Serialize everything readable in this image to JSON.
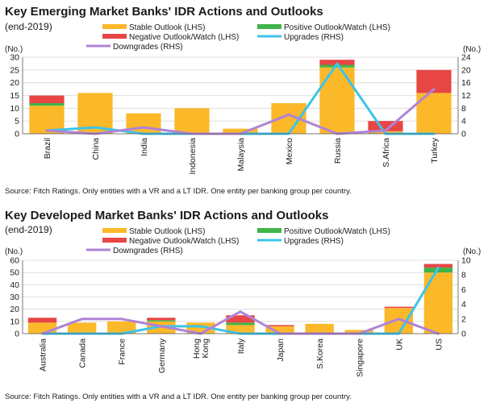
{
  "colors": {
    "stable": "#fbb829",
    "positive": "#3fb44a",
    "negative": "#e84545",
    "upgrades": "#3cc4ea",
    "downgrades": "#b083d6",
    "grid": "#d9d9d9",
    "axis": "#555555"
  },
  "chart_data": [
    {
      "type": "bar",
      "title": "Key Emerging Market Banks' IDR Actions and Outlooks",
      "subtitle": "(end-2019)",
      "ylabel_left": "(No.)",
      "ylabel_right": "(No.)",
      "ylim_left": [
        0,
        30
      ],
      "yticks_left": [
        0,
        5,
        10,
        15,
        20,
        25,
        30
      ],
      "ylim_right": [
        0,
        24
      ],
      "yticks_right": [
        0,
        4,
        8,
        12,
        16,
        20,
        24
      ],
      "grid": true,
      "legend_position": "top",
      "legend": [
        "Stable Outlook (LHS)",
        "Positive Outlook/Watch (LHS)",
        "Negative Outlook/Watch (LHS)",
        "Upgrades (RHS)",
        "Downgrades (RHS)"
      ],
      "categories": [
        "Brazil",
        "China",
        "India",
        "Indonesia",
        "Malaysia",
        "Mexico",
        "Russia",
        "S.Africa",
        "Turkey"
      ],
      "series": [
        {
          "name": "Stable Outlook (LHS)",
          "kind": "bar",
          "axis": "left",
          "values": [
            11,
            16,
            8,
            10,
            2,
            12,
            26,
            1,
            16
          ]
        },
        {
          "name": "Positive Outlook/Watch (LHS)",
          "kind": "bar",
          "axis": "left",
          "values": [
            1,
            0,
            0,
            0,
            0,
            0,
            1,
            0,
            0
          ]
        },
        {
          "name": "Negative Outlook/Watch (LHS)",
          "kind": "bar",
          "axis": "left",
          "values": [
            3,
            0,
            0,
            0,
            0,
            0,
            2,
            4,
            9
          ]
        },
        {
          "name": "Upgrades (RHS)",
          "kind": "line",
          "axis": "right",
          "values": [
            1,
            2,
            0,
            0,
            0,
            0,
            22,
            0,
            0
          ]
        },
        {
          "name": "Downgrades (RHS)",
          "kind": "line",
          "axis": "right",
          "values": [
            1,
            0,
            2,
            0,
            0,
            6,
            0,
            1,
            14
          ]
        }
      ],
      "source": "Source: Fitch Ratings. Only entities with a VR and a LT IDR. One entity per banking group per country."
    },
    {
      "type": "bar",
      "title": "Key Developed Market Banks' IDR Actions and Outlooks",
      "subtitle": "(end-2019)",
      "ylabel_left": "(No.)",
      "ylabel_right": "(No.)",
      "ylim_left": [
        0,
        60
      ],
      "yticks_left": [
        0,
        10,
        20,
        30,
        40,
        50,
        60
      ],
      "ylim_right": [
        0,
        10
      ],
      "yticks_right": [
        0,
        2,
        4,
        6,
        8,
        10
      ],
      "grid": true,
      "legend_position": "top",
      "legend": [
        "Stable Outlook (LHS)",
        "Positive Outlook/Watch (LHS)",
        "Negative Outlook/Watch (LHS)",
        "Upgrades (RHS)",
        "Downgrades (RHS)"
      ],
      "categories": [
        "Australia",
        "Canada",
        "France",
        "Germany",
        "Hong Kong",
        "Italy",
        "Japan",
        "S.Korea",
        "Singapore",
        "UK",
        "US"
      ],
      "series": [
        {
          "name": "Stable Outlook (LHS)",
          "kind": "bar",
          "axis": "left",
          "values": [
            9,
            9,
            10,
            10,
            9,
            7,
            6,
            8,
            3,
            21,
            50
          ]
        },
        {
          "name": "Positive Outlook/Watch (LHS)",
          "kind": "bar",
          "axis": "left",
          "values": [
            0,
            0,
            0,
            1,
            0,
            2,
            0,
            0,
            0,
            0,
            4
          ]
        },
        {
          "name": "Negative Outlook/Watch (LHS)",
          "kind": "bar",
          "axis": "left",
          "values": [
            4,
            0,
            0,
            2,
            0,
            6,
            1,
            0,
            0,
            1,
            3
          ]
        },
        {
          "name": "Upgrades (RHS)",
          "kind": "line",
          "axis": "right",
          "values": [
            0,
            0,
            0,
            1,
            1,
            0,
            0,
            0,
            0,
            0,
            9
          ]
        },
        {
          "name": "Downgrades (RHS)",
          "kind": "line",
          "axis": "right",
          "values": [
            0,
            2,
            2,
            1,
            0,
            3,
            0,
            0,
            0,
            2,
            0
          ]
        }
      ],
      "source": "Source: Fitch Ratings.  Only entities with a VR and a LT IDR. One entity per banking group per country."
    }
  ]
}
